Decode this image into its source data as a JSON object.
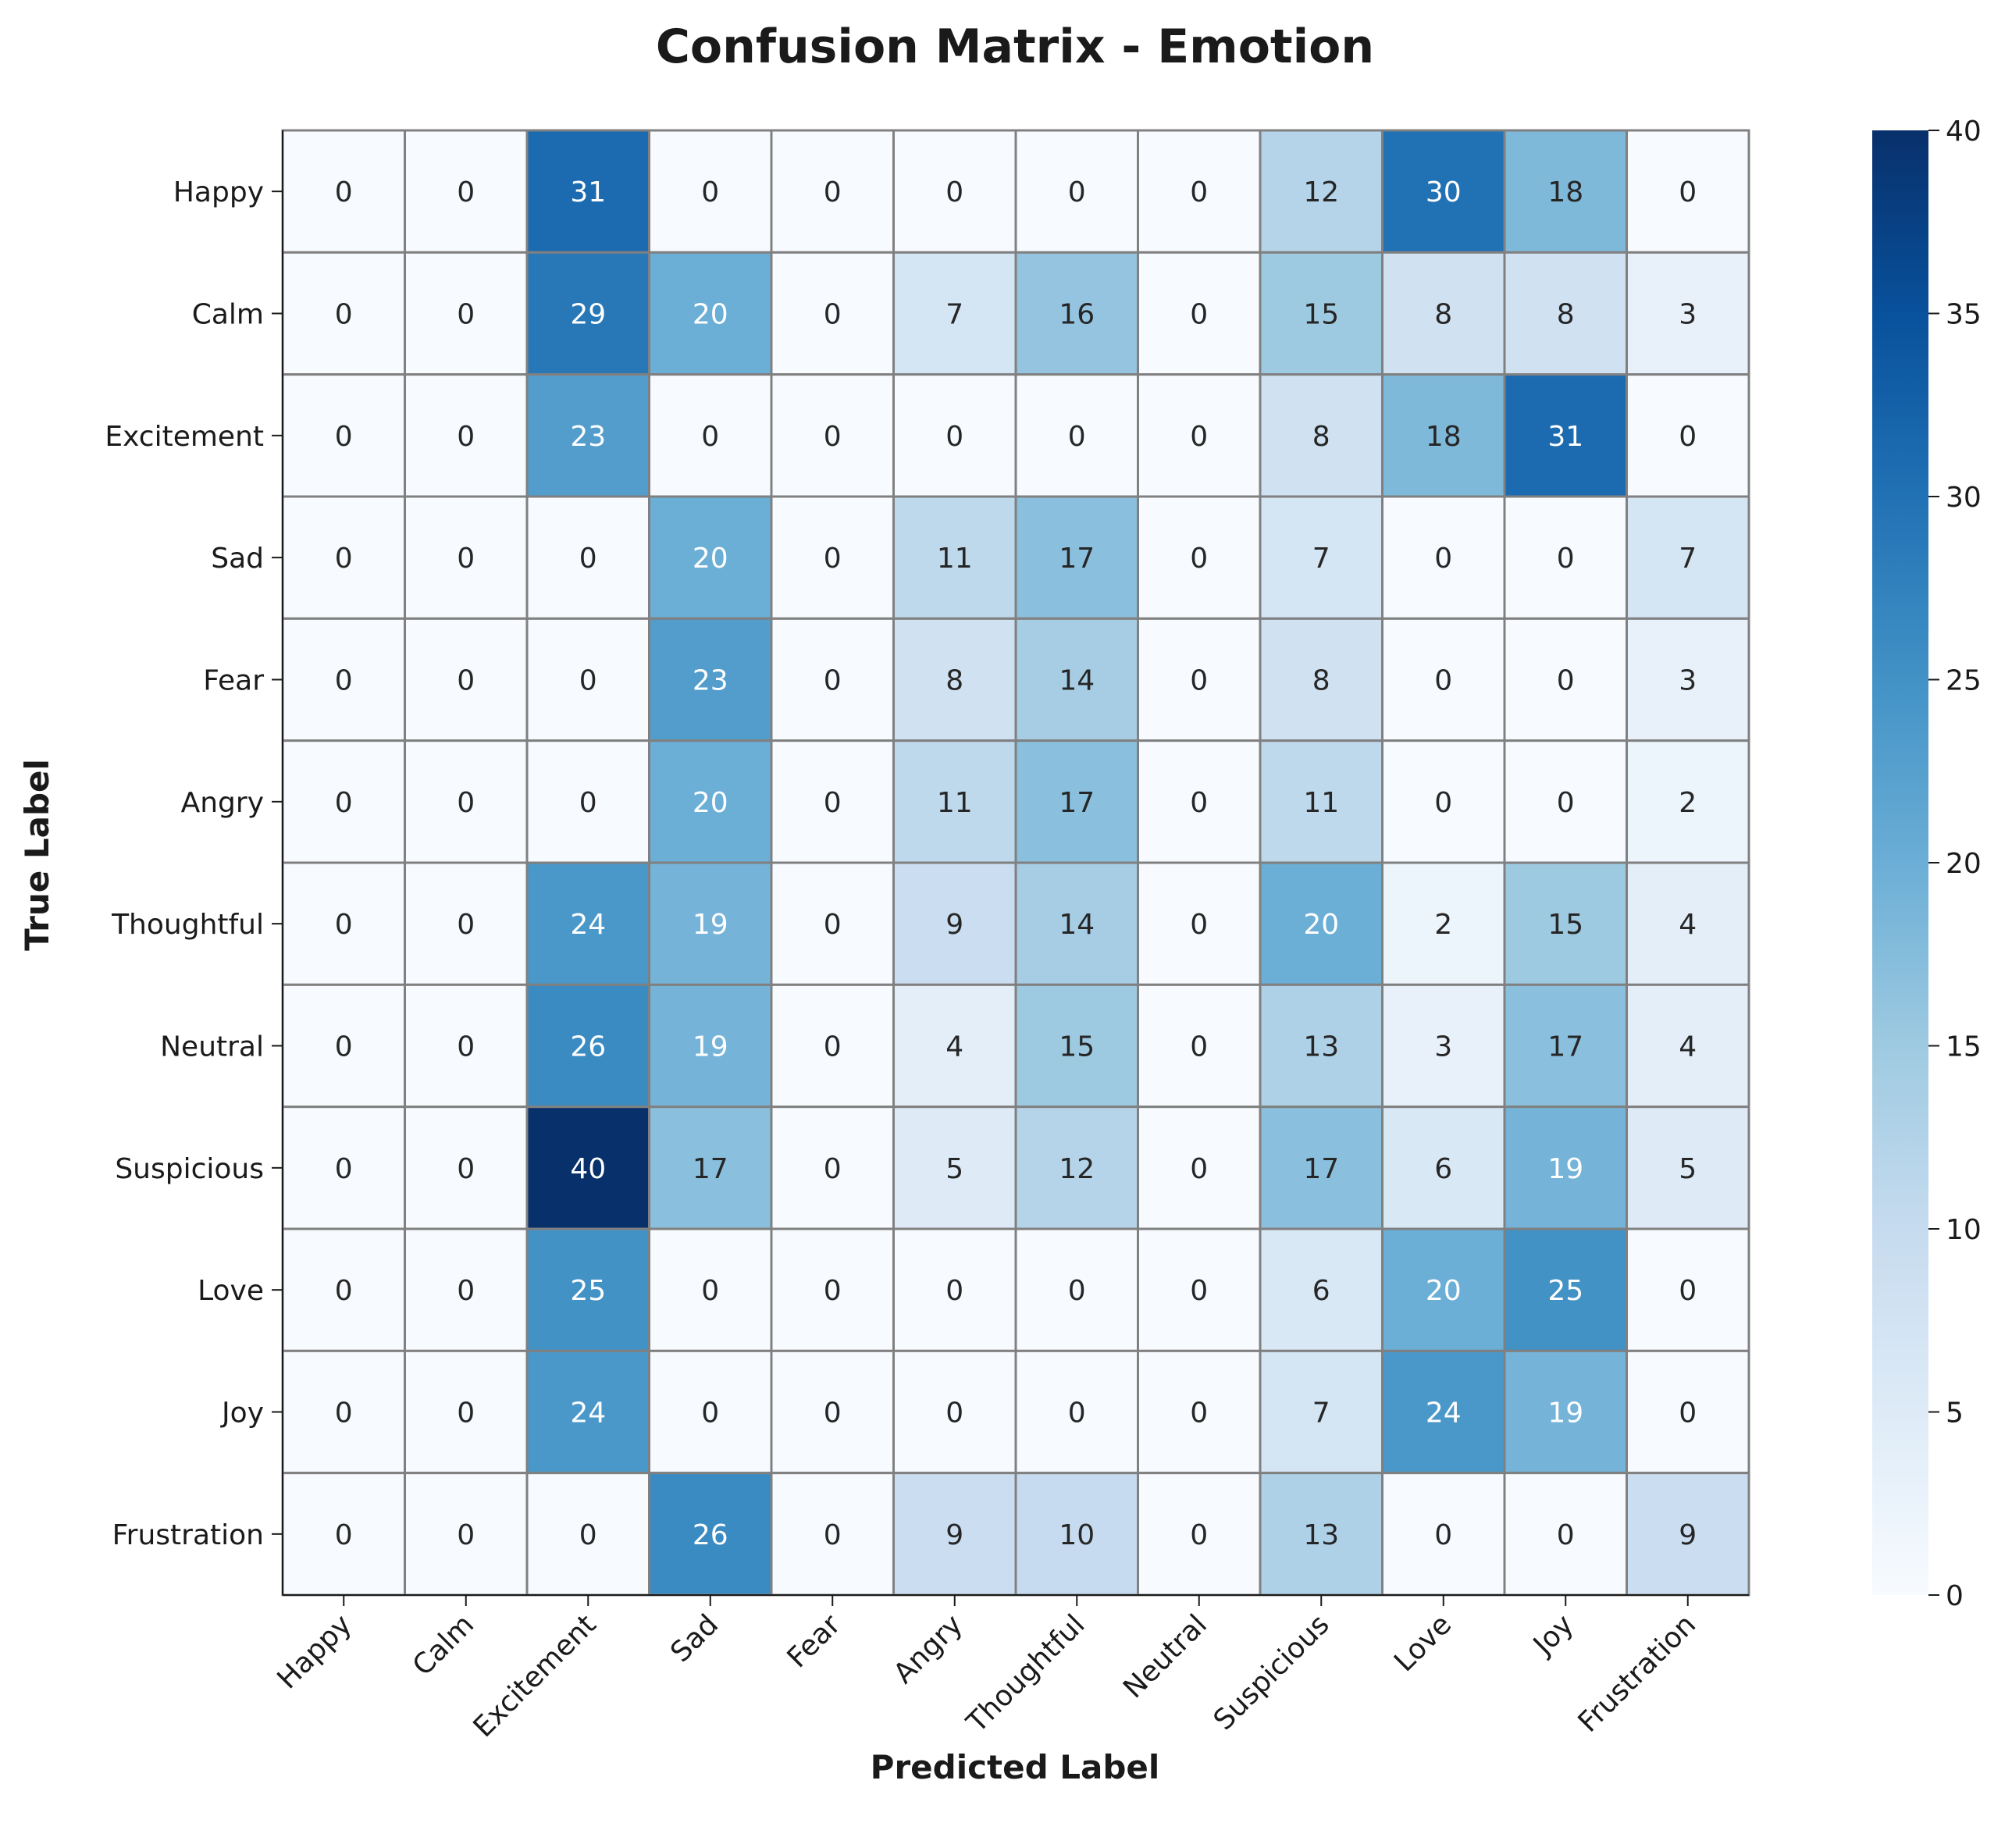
{
  "chart_data": {
    "type": "heatmap",
    "title": "Confusion Matrix - Emotion",
    "xlabel": "Predicted Label",
    "ylabel": "True Label",
    "x_categories": [
      "Happy",
      "Calm",
      "Excitement",
      "Sad",
      "Fear",
      "Angry",
      "Thoughtful",
      "Neutral",
      "Suspicious",
      "Love",
      "Joy",
      "Frustration"
    ],
    "y_categories": [
      "Happy",
      "Calm",
      "Excitement",
      "Sad",
      "Fear",
      "Angry",
      "Thoughtful",
      "Neutral",
      "Suspicious",
      "Love",
      "Joy",
      "Frustration"
    ],
    "values": [
      [
        0,
        0,
        31,
        0,
        0,
        0,
        0,
        0,
        12,
        30,
        18,
        0
      ],
      [
        0,
        0,
        29,
        20,
        0,
        7,
        16,
        0,
        15,
        8,
        8,
        3
      ],
      [
        0,
        0,
        23,
        0,
        0,
        0,
        0,
        0,
        8,
        18,
        31,
        0
      ],
      [
        0,
        0,
        0,
        20,
        0,
        11,
        17,
        0,
        7,
        0,
        0,
        7
      ],
      [
        0,
        0,
        0,
        23,
        0,
        8,
        14,
        0,
        8,
        0,
        0,
        3
      ],
      [
        0,
        0,
        0,
        20,
        0,
        11,
        17,
        0,
        11,
        0,
        0,
        2
      ],
      [
        0,
        0,
        24,
        19,
        0,
        9,
        14,
        0,
        20,
        2,
        15,
        4
      ],
      [
        0,
        0,
        26,
        19,
        0,
        4,
        15,
        0,
        13,
        3,
        17,
        4
      ],
      [
        0,
        0,
        40,
        17,
        0,
        5,
        12,
        0,
        17,
        6,
        19,
        5
      ],
      [
        0,
        0,
        25,
        0,
        0,
        0,
        0,
        0,
        6,
        20,
        25,
        0
      ],
      [
        0,
        0,
        24,
        0,
        0,
        0,
        0,
        0,
        7,
        24,
        19,
        0
      ],
      [
        0,
        0,
        0,
        26,
        0,
        9,
        10,
        0,
        13,
        0,
        0,
        9
      ]
    ],
    "colorbar": {
      "min": 0,
      "max": 40,
      "ticks": [
        "0",
        "5",
        "10",
        "15",
        "20",
        "25",
        "30",
        "35",
        "40"
      ]
    },
    "colormap": "Blues",
    "colors": {
      "low": "#f7fbff",
      "high": "#08306b",
      "cell_border": "#808080"
    }
  }
}
